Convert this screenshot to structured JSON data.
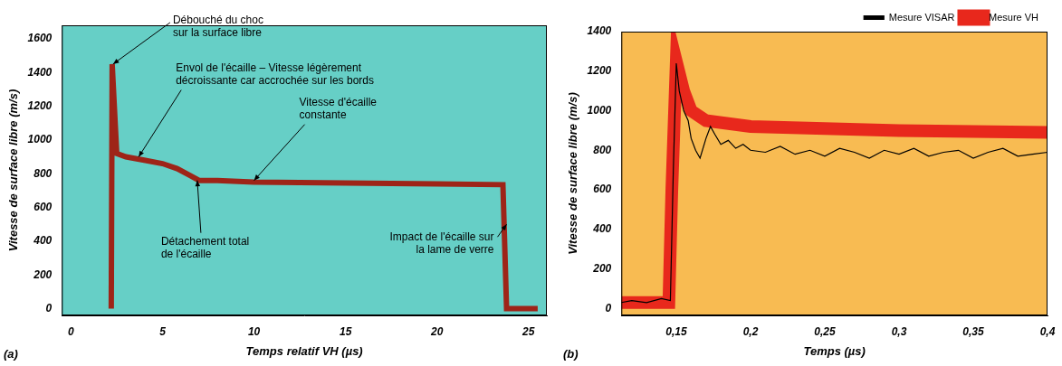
{
  "chart_data": [
    {
      "type": "line",
      "panel_label": "(a)",
      "x_label": "Temps relatif VH (µs)",
      "y_label": "Vitesse de surface libre (m/s)",
      "xlim": [
        -0.5,
        26
      ],
      "xticks": [
        0,
        5,
        10,
        15,
        20,
        25
      ],
      "ylim": [
        -40,
        1680
      ],
      "yticks": [
        0,
        200,
        400,
        600,
        800,
        1000,
        1200,
        1400,
        1600
      ],
      "grid": false,
      "color": "#9e2418",
      "x": [
        2.2,
        2.25,
        2.5,
        3,
        4,
        5,
        5.8,
        6.5,
        7,
        8,
        10,
        15,
        20,
        23.6,
        23.8,
        25.5
      ],
      "values": [
        0,
        1450,
        920,
        900,
        880,
        860,
        830,
        790,
        760,
        760,
        750,
        745,
        740,
        735,
        0,
        0
      ],
      "annotations": [
        {
          "text": [
            "Débouché du choc",
            "sur la surface libre"
          ],
          "x": 2.3,
          "y": 1450
        },
        {
          "text": [
            "Envol de l'écaille – Vitesse légèrement",
            "décroissante car accrochée sur les bords"
          ],
          "x": 3.7,
          "y": 900
        },
        {
          "text": [
            "Vitesse d'écaille",
            "constante"
          ],
          "x": 10,
          "y": 760
        },
        {
          "text": [
            "Détachement total",
            "de l'écaille"
          ],
          "x": 6.9,
          "y": 760
        },
        {
          "text": [
            "Impact de l'écaille sur",
            "la lame de verre"
          ],
          "x": 23.8,
          "y": 500
        }
      ]
    },
    {
      "type": "line",
      "panel_label": "(b)",
      "x_label": "Temps (µs)",
      "y_label": "Vitesse de surface libre (m/s)",
      "xlim": [
        0.113,
        0.4
      ],
      "xticks": [
        {
          "value": 0.15,
          "label": "0,15"
        },
        {
          "value": 0.2,
          "label": "0,2"
        },
        {
          "value": 0.25,
          "label": "0,25"
        },
        {
          "value": 0.3,
          "label": "0,3"
        },
        {
          "value": 0.35,
          "label": "0,35"
        },
        {
          "value": 0.4,
          "label": "0,4"
        }
      ],
      "ylim": [
        -35,
        1400
      ],
      "yticks": [
        0,
        200,
        400,
        600,
        800,
        1000,
        1200,
        1400
      ],
      "grid": false,
      "legend": "top right",
      "series": [
        {
          "name": "Mesure VISAR",
          "color": "#000000",
          "x": [
            0.113,
            0.12,
            0.13,
            0.14,
            0.146,
            0.148,
            0.15,
            0.152,
            0.155,
            0.158,
            0.16,
            0.163,
            0.166,
            0.17,
            0.173,
            0.176,
            0.18,
            0.185,
            0.19,
            0.195,
            0.2,
            0.21,
            0.22,
            0.23,
            0.24,
            0.25,
            0.26,
            0.27,
            0.28,
            0.29,
            0.3,
            0.31,
            0.32,
            0.33,
            0.34,
            0.35,
            0.36,
            0.37,
            0.38,
            0.39,
            0.4
          ],
          "values": [
            30,
            40,
            30,
            50,
            40,
            700,
            1240,
            1100,
            1000,
            950,
            860,
            800,
            760,
            860,
            920,
            880,
            830,
            850,
            810,
            830,
            800,
            790,
            820,
            780,
            800,
            770,
            810,
            790,
            760,
            800,
            780,
            810,
            770,
            790,
            800,
            760,
            790,
            810,
            770,
            780,
            790
          ]
        },
        {
          "name": "Mesure VH",
          "color": "#e8281c",
          "x": [
            0.113,
            0.145,
            0.147,
            0.15,
            0.155,
            0.16,
            0.17,
            0.2,
            0.25,
            0.3,
            0.35,
            0.4
          ],
          "values": [
            30,
            30,
            600,
            1250,
            1100,
            1000,
            950,
            920,
            910,
            900,
            895,
            890
          ]
        }
      ]
    }
  ]
}
